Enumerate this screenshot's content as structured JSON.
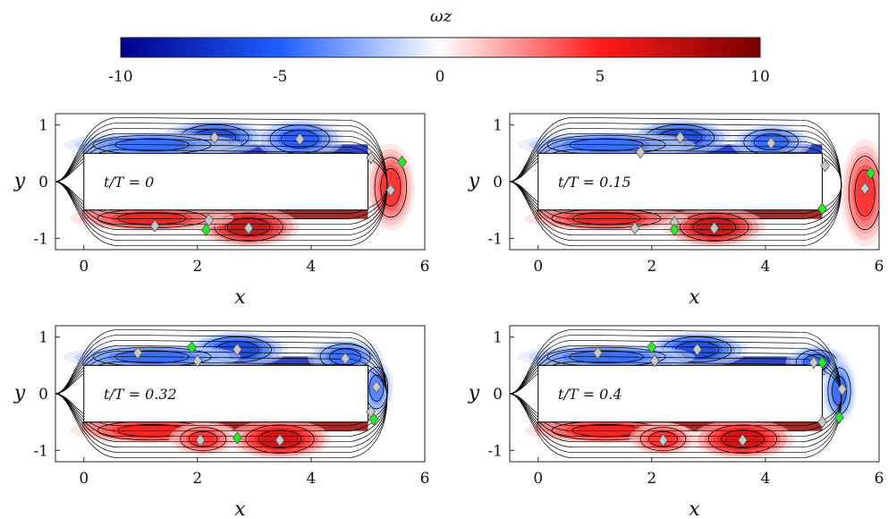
{
  "chart_data": {
    "type": "heatmap",
    "colorbar": {
      "label": "ωz",
      "ticks": [
        "-10",
        "-5",
        "0",
        "5",
        "10"
      ],
      "range": [
        -10,
        10
      ],
      "colors": [
        "#00008b",
        "#1f5fff",
        "#ffffff",
        "#ff1a1a",
        "#7a0000"
      ]
    },
    "axes": {
      "xlabel": "x",
      "ylabel": "y",
      "xlim": [
        -0.5,
        6
      ],
      "ylim": [
        -1.2,
        1.2
      ],
      "xticks": [
        "0",
        "2",
        "4",
        "6"
      ],
      "yticks": [
        "1",
        "0",
        "-1"
      ],
      "body": {
        "x0": 0,
        "x1": 5,
        "y0": -0.5,
        "y1": 0.5
      }
    },
    "panels": [
      {
        "label": "t/T = 0",
        "vortices": [
          {
            "x": 2.3,
            "y": 0.78,
            "w": -8,
            "rx": 0.75,
            "ry": 0.22
          },
          {
            "x": 3.8,
            "y": 0.75,
            "w": -7,
            "rx": 0.65,
            "ry": 0.25
          },
          {
            "x": 1.2,
            "y": 0.65,
            "w": -6,
            "rx": 1.3,
            "ry": 0.15
          },
          {
            "x": 2.9,
            "y": -0.8,
            "w": 9,
            "rx": 0.75,
            "ry": 0.25
          },
          {
            "x": 1.2,
            "y": -0.65,
            "w": 7,
            "rx": 1.2,
            "ry": 0.15
          },
          {
            "x": 5.4,
            "y": -0.1,
            "w": 6,
            "rx": 0.35,
            "ry": 0.6
          }
        ],
        "markers_gray": [
          [
            2.3,
            0.78
          ],
          [
            3.8,
            0.75
          ],
          [
            5.05,
            0.42
          ],
          [
            5.4,
            -0.15
          ],
          [
            1.25,
            -0.78
          ],
          [
            2.2,
            -0.68
          ],
          [
            2.9,
            -0.82
          ]
        ],
        "markers_green": [
          [
            5.6,
            0.35
          ],
          [
            2.15,
            -0.85
          ]
        ]
      },
      {
        "label": "t/T = 0.15",
        "vortices": [
          {
            "x": 2.5,
            "y": 0.78,
            "w": -8,
            "rx": 0.75,
            "ry": 0.22
          },
          {
            "x": 4.1,
            "y": 0.7,
            "w": -6,
            "rx": 0.6,
            "ry": 0.22
          },
          {
            "x": 1.2,
            "y": 0.65,
            "w": -6,
            "rx": 1.3,
            "ry": 0.15
          },
          {
            "x": 3.1,
            "y": -0.8,
            "w": 9,
            "rx": 0.75,
            "ry": 0.25
          },
          {
            "x": 1.2,
            "y": -0.65,
            "w": 7,
            "rx": 1.2,
            "ry": 0.15
          },
          {
            "x": 5.75,
            "y": -0.2,
            "w": 6,
            "rx": 0.35,
            "ry": 0.75
          }
        ],
        "markers_gray": [
          [
            1.8,
            0.52
          ],
          [
            2.5,
            0.78
          ],
          [
            4.1,
            0.68
          ],
          [
            5.05,
            0.28
          ],
          [
            5.75,
            -0.12
          ],
          [
            1.7,
            -0.82
          ],
          [
            2.4,
            -0.72
          ],
          [
            3.1,
            -0.82
          ]
        ],
        "markers_green": [
          [
            5.85,
            0.15
          ],
          [
            5.0,
            -0.48
          ],
          [
            2.4,
            -0.85
          ]
        ]
      },
      {
        "label": "t/T = 0.32",
        "vortices": [
          {
            "x": 2.7,
            "y": 0.78,
            "w": -8,
            "rx": 0.75,
            "ry": 0.22
          },
          {
            "x": 4.6,
            "y": 0.65,
            "w": -6,
            "rx": 0.55,
            "ry": 0.22
          },
          {
            "x": 1.2,
            "y": 0.65,
            "w": -6,
            "rx": 1.3,
            "ry": 0.15
          },
          {
            "x": 5.15,
            "y": 0.1,
            "w": -5,
            "rx": 0.25,
            "ry": 0.4
          },
          {
            "x": 3.45,
            "y": -0.8,
            "w": 9,
            "rx": 0.75,
            "ry": 0.25
          },
          {
            "x": 1.2,
            "y": -0.65,
            "w": 7,
            "rx": 1.2,
            "ry": 0.15
          },
          {
            "x": 2.1,
            "y": -0.8,
            "w": 6,
            "rx": 0.5,
            "ry": 0.2
          }
        ],
        "markers_gray": [
          [
            0.95,
            0.72
          ],
          [
            2.0,
            0.58
          ],
          [
            2.7,
            0.78
          ],
          [
            4.6,
            0.62
          ],
          [
            5.15,
            0.12
          ],
          [
            5.05,
            -0.32
          ],
          [
            2.05,
            -0.82
          ],
          [
            3.45,
            -0.82
          ]
        ],
        "markers_green": [
          [
            1.9,
            0.82
          ],
          [
            5.1,
            -0.45
          ],
          [
            2.7,
            -0.78
          ]
        ]
      },
      {
        "label": "t/T = 0.4",
        "vortices": [
          {
            "x": 2.8,
            "y": 0.78,
            "w": -8,
            "rx": 0.75,
            "ry": 0.22
          },
          {
            "x": 4.9,
            "y": 0.55,
            "w": -6,
            "rx": 0.45,
            "ry": 0.22
          },
          {
            "x": 1.2,
            "y": 0.65,
            "w": -6,
            "rx": 1.3,
            "ry": 0.15
          },
          {
            "x": 5.3,
            "y": 0.05,
            "w": -6,
            "rx": 0.25,
            "ry": 0.45
          },
          {
            "x": 3.6,
            "y": -0.8,
            "w": 9,
            "rx": 0.75,
            "ry": 0.25
          },
          {
            "x": 1.2,
            "y": -0.65,
            "w": 7,
            "rx": 1.2,
            "ry": 0.15
          },
          {
            "x": 2.2,
            "y": -0.8,
            "w": 6,
            "rx": 0.5,
            "ry": 0.2
          }
        ],
        "markers_gray": [
          [
            1.05,
            0.72
          ],
          [
            2.05,
            0.58
          ],
          [
            2.8,
            0.78
          ],
          [
            4.85,
            0.55
          ],
          [
            5.35,
            0.08
          ],
          [
            5.0,
            -0.5
          ],
          [
            2.2,
            -0.82
          ],
          [
            3.6,
            -0.82
          ]
        ],
        "markers_green": [
          [
            2.0,
            0.82
          ],
          [
            5.0,
            0.55
          ],
          [
            5.3,
            -0.42
          ]
        ]
      }
    ]
  }
}
